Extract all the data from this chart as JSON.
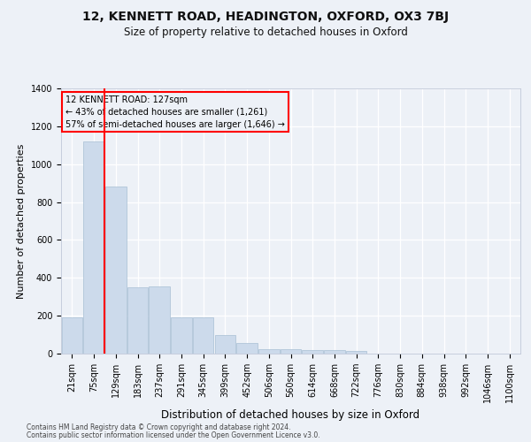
{
  "title1": "12, KENNETT ROAD, HEADINGTON, OXFORD, OX3 7BJ",
  "title2": "Size of property relative to detached houses in Oxford",
  "xlabel": "Distribution of detached houses by size in Oxford",
  "ylabel": "Number of detached properties",
  "bar_color": "#ccdaeb",
  "bar_edge_color": "#a8bfd4",
  "categories": [
    "21sqm",
    "75sqm",
    "129sqm",
    "183sqm",
    "237sqm",
    "291sqm",
    "345sqm",
    "399sqm",
    "452sqm",
    "506sqm",
    "560sqm",
    "614sqm",
    "668sqm",
    "722sqm",
    "776sqm",
    "830sqm",
    "884sqm",
    "938sqm",
    "992sqm",
    "1046sqm",
    "1100sqm"
  ],
  "values": [
    190,
    1120,
    880,
    350,
    355,
    190,
    190,
    100,
    55,
    25,
    25,
    20,
    20,
    13,
    0,
    0,
    0,
    0,
    0,
    0,
    0
  ],
  "ylim": [
    0,
    1400
  ],
  "yticks": [
    0,
    200,
    400,
    600,
    800,
    1000,
    1200,
    1400
  ],
  "red_line_index": 1.5,
  "annotation_title": "12 KENNETT ROAD: 127sqm",
  "annotation_line1": "← 43% of detached houses are smaller (1,261)",
  "annotation_line2": "57% of semi-detached houses are larger (1,646) →",
  "footer1": "Contains HM Land Registry data © Crown copyright and database right 2024.",
  "footer2": "Contains public sector information licensed under the Open Government Licence v3.0.",
  "background_color": "#edf1f7",
  "grid_color": "#ffffff",
  "title1_fontsize": 10,
  "title2_fontsize": 8.5,
  "xlabel_fontsize": 8.5,
  "ylabel_fontsize": 8,
  "tick_fontsize": 7,
  "footer_fontsize": 5.5
}
